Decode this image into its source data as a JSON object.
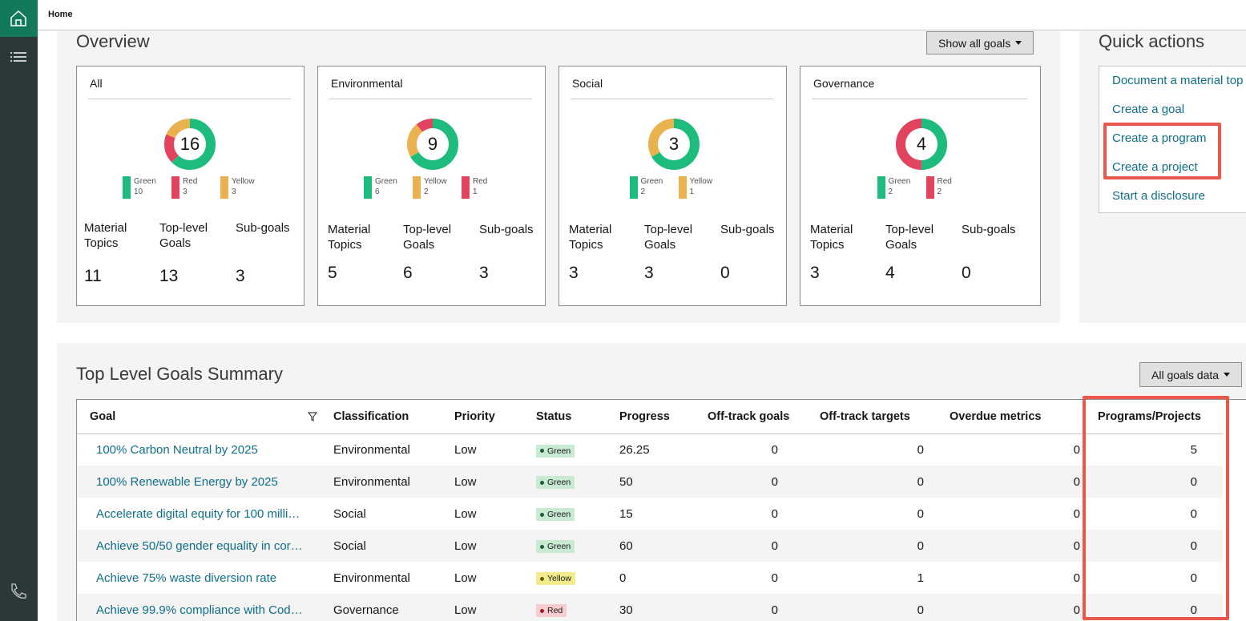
{
  "breadcrumb": "Home",
  "overview": {
    "title": "Overview",
    "button": "Show all goals",
    "cards": [
      {
        "title": "All",
        "total": 16,
        "legend": [
          {
            "name": "Green",
            "count": 10,
            "color": "#1dbb7c"
          },
          {
            "name": "Red",
            "count": 3,
            "color": "#e2445f"
          },
          {
            "name": "Yellow",
            "count": 3,
            "color": "#eab24e"
          }
        ],
        "stats": [
          {
            "label": "Material Topics",
            "value": 11
          },
          {
            "label": "Top-level Goals",
            "value": 13
          },
          {
            "label": "Sub-goals",
            "value": 3
          }
        ]
      },
      {
        "title": "Environmental",
        "total": 9,
        "legend": [
          {
            "name": "Green",
            "count": 6,
            "color": "#1dbb7c"
          },
          {
            "name": "Yellow",
            "count": 2,
            "color": "#eab24e"
          },
          {
            "name": "Red",
            "count": 1,
            "color": "#e2445f"
          }
        ],
        "stats": [
          {
            "label": "Material Topics",
            "value": 5
          },
          {
            "label": "Top-level Goals",
            "value": 6
          },
          {
            "label": "Sub-goals",
            "value": 3
          }
        ]
      },
      {
        "title": "Social",
        "total": 3,
        "legend": [
          {
            "name": "Green",
            "count": 2,
            "color": "#1dbb7c"
          },
          {
            "name": "Yellow",
            "count": 1,
            "color": "#eab24e"
          }
        ],
        "stats": [
          {
            "label": "Material Topics",
            "value": 3
          },
          {
            "label": "Top-level Goals",
            "value": 3
          },
          {
            "label": "Sub-goals",
            "value": 0
          }
        ]
      },
      {
        "title": "Governance",
        "total": 4,
        "legend": [
          {
            "name": "Green",
            "count": 2,
            "color": "#1dbb7c"
          },
          {
            "name": "Red",
            "count": 2,
            "color": "#e2445f"
          }
        ],
        "stats": [
          {
            "label": "Material Topics",
            "value": 3
          },
          {
            "label": "Top-level Goals",
            "value": 4
          },
          {
            "label": "Sub-goals",
            "value": 0
          }
        ]
      }
    ]
  },
  "quick_actions": {
    "title": "Quick actions",
    "links": [
      "Document a material top",
      "Create a goal",
      "Create a program",
      "Create a project",
      "Start a disclosure"
    ]
  },
  "summary": {
    "title": "Top Level Goals Summary",
    "button": "All goals data",
    "columns": [
      "Goal",
      "Classification",
      "Priority",
      "Status",
      "Progress",
      "Off-track goals",
      "Off-track targets",
      "Overdue metrics",
      "Programs/Projects"
    ],
    "rows": [
      [
        "100% Carbon Neutral by 2025",
        "Environmental",
        "Low",
        "Green",
        26.25,
        0,
        0,
        0,
        5
      ],
      [
        "100% Renewable Energy by 2025",
        "Environmental",
        "Low",
        "Green",
        50,
        0,
        0,
        0,
        0
      ],
      [
        "Accelerate digital equity for 100 milli…",
        "Social",
        "Low",
        "Green",
        15,
        0,
        0,
        0,
        0
      ],
      [
        "Achieve 50/50 gender equality in cor…",
        "Social",
        "Low",
        "Green",
        60,
        0,
        0,
        0,
        0
      ],
      [
        "Achieve 75% waste diversion rate",
        "Environmental",
        "Low",
        "Yellow",
        0,
        0,
        1,
        0,
        0
      ],
      [
        "Achieve 99.9% compliance with Cod…",
        "Governance",
        "Low",
        "Red",
        30,
        0,
        0,
        0,
        0
      ]
    ]
  }
}
